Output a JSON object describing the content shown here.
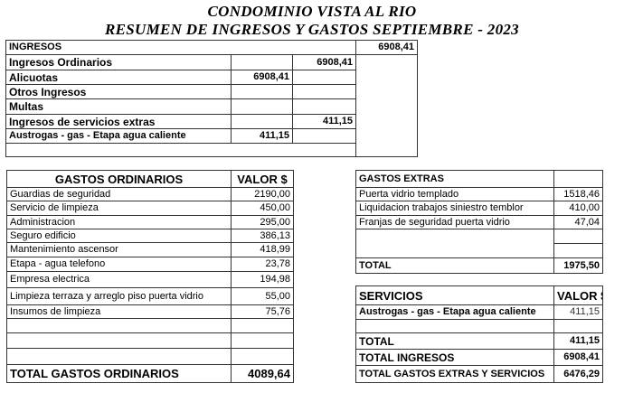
{
  "title": {
    "line1": "CONDOMINIO VISTA AL RIO",
    "line2": "RESUMEN DE INGRESOS Y GASTOS SEPTIEMBRE - 2023"
  },
  "ingresos": {
    "header": "INGRESOS",
    "total": "6908,41",
    "rows": [
      {
        "label": "Ingresos Ordinarios",
        "col1": "",
        "col2": "6908,41"
      },
      {
        "label": "Alicuotas",
        "col1": "6908,41",
        "col2": ""
      },
      {
        "label": "Otros Ingresos",
        "col1": "",
        "col2": ""
      },
      {
        "label": "Multas",
        "col1": "",
        "col2": ""
      },
      {
        "label": "Ingresos de servicios extras",
        "col1": "",
        "col2": "411,15"
      },
      {
        "label": "Austrogas - gas - Etapa agua caliente",
        "col1": "411,15",
        "col2": ""
      }
    ]
  },
  "gastos_ordinarios": {
    "header": "GASTOS ORDINARIOS",
    "value_header": "VALOR $",
    "rows": [
      {
        "label": "Guardias de seguridad",
        "value": "2190,00"
      },
      {
        "label": "Servicio de limpieza",
        "value": "450,00"
      },
      {
        "label": "Administracion",
        "value": "295,00"
      },
      {
        "label": "Seguro edificio",
        "value": "386,13"
      },
      {
        "label": "Mantenimiento ascensor",
        "value": "418,99"
      },
      {
        "label": "Etapa - agua telefono",
        "value": "23,78"
      },
      {
        "label": "Empresa electrica",
        "value": "194,98"
      },
      {
        "label": "Limpieza terraza y arreglo piso puerta vidrio",
        "value": "55,00"
      },
      {
        "label": "Insumos de limpieza",
        "value": "75,76"
      }
    ],
    "total_label": "TOTAL GASTOS ORDINARIOS",
    "total_value": "4089,64"
  },
  "gastos_extras": {
    "header": "GASTOS EXTRAS",
    "rows": [
      {
        "label": "Puerta vidrio templado",
        "value": "1518,46"
      },
      {
        "label": "Liquidacion trabajos siniestro temblor",
        "value": "410,00"
      },
      {
        "label": "Franjas de seguridad puerta vidrio",
        "value": "47,04"
      }
    ],
    "total_label": "TOTAL",
    "total_value": "1975,50"
  },
  "servicios": {
    "header": "SERVICIOS",
    "value_header": "VALOR $",
    "rows": [
      {
        "label": "Austrogas - gas - Etapa agua caliente",
        "value": "411,15"
      }
    ],
    "total_label": "TOTAL",
    "total_value": "411,15",
    "total_ingresos_label": "TOTAL INGRESOS",
    "total_ingresos_value": "6908,41",
    "total_gastos_label": "TOTAL GASTOS EXTRAS Y SERVICIOS",
    "total_gastos_value": "6476,29"
  }
}
